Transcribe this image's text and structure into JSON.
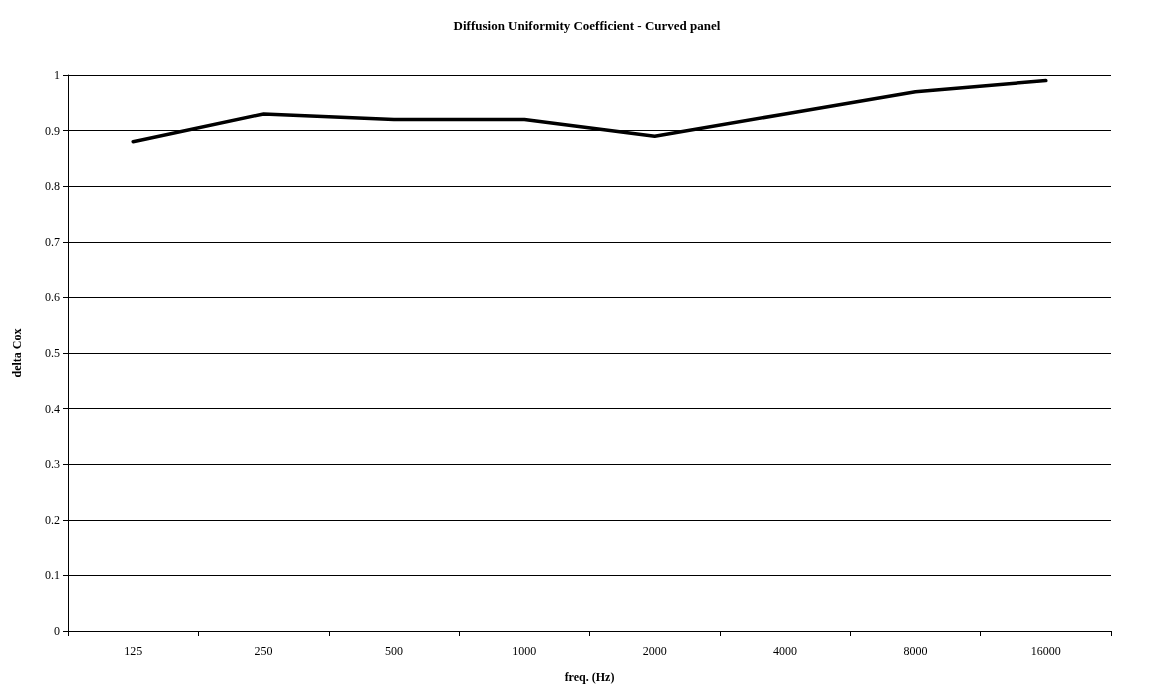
{
  "chart_data": {
    "type": "line",
    "title": "Diffusion Uniformity Coefficient - Curved panel",
    "xlabel": "freq. (Hz)",
    "ylabel": "delta Cox",
    "categories": [
      "125",
      "250",
      "500",
      "1000",
      "2000",
      "4000",
      "8000",
      "16000"
    ],
    "series": [
      {
        "color": "#000000",
        "values": [
          0.88,
          0.93,
          0.92,
          0.92,
          0.89,
          0.93,
          0.97,
          0.99
        ]
      }
    ],
    "ylim": [
      0,
      1
    ],
    "yticks": [
      0,
      0.1,
      0.2,
      0.3,
      0.4,
      0.5,
      0.6,
      0.7,
      0.8,
      0.9,
      1
    ],
    "grid": "y",
    "marker": "none",
    "line_style": "solid"
  }
}
